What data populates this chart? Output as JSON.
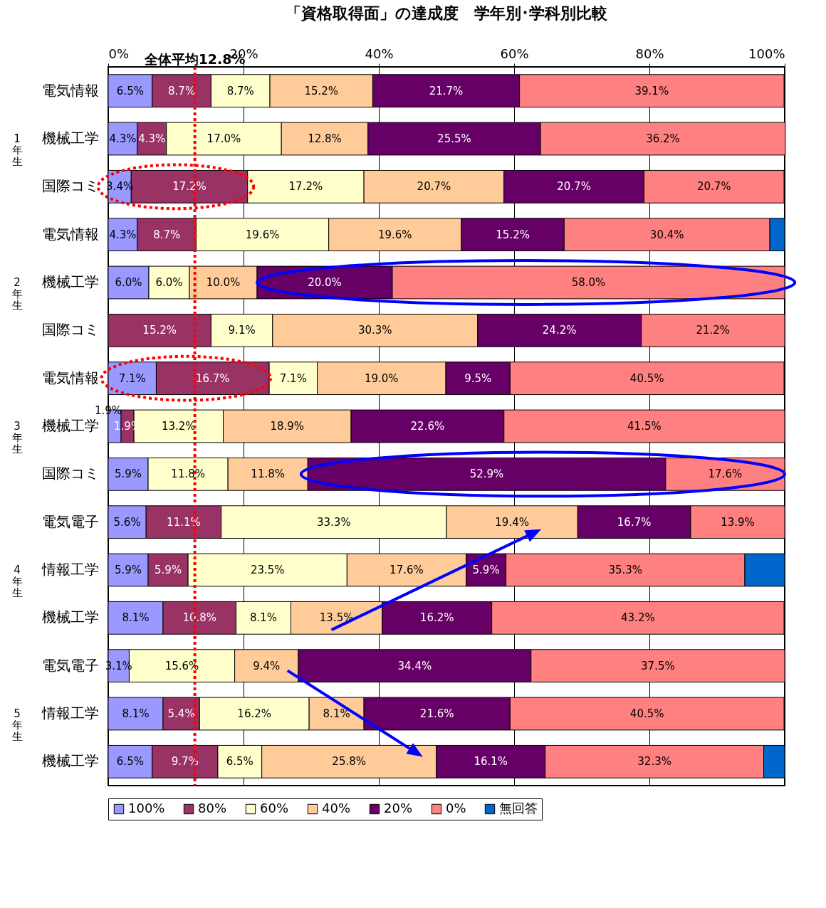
{
  "chart_data": {
    "type": "bar",
    "orientation": "horizontal",
    "stacked": true,
    "title": "「資格取得面」の達成度　学年別･学科別比較",
    "categories": [
      "電気情報",
      "機械工学",
      "国際コミ",
      "電気情報",
      "機械工学",
      "国際コミ",
      "電気情報",
      "機械工学",
      "国際コミ",
      "電気電子",
      "情報工学",
      "機械工学",
      "電気電子",
      "情報工学",
      "機械工学"
    ],
    "series": [
      {
        "name": "100%",
        "color": "#9999ff",
        "values": [
          6.5,
          4.3,
          3.4,
          4.3,
          6.0,
          0,
          7.1,
          1.9,
          5.9,
          5.6,
          5.9,
          8.1,
          3.1,
          8.1,
          6.5
        ],
        "value_labels": [
          "6.5%",
          "4.3%",
          "3.4%",
          "4.3%",
          "6.0%",
          null,
          "7.1%",
          "1.9%",
          "5.9%",
          "5.6%",
          "5.9%",
          "8.1%",
          "3.1%",
          "8.1%",
          "6.5%"
        ]
      },
      {
        "name": "80%",
        "color": "#993366",
        "values": [
          8.7,
          4.3,
          17.2,
          8.7,
          0,
          15.2,
          16.7,
          1.9,
          0,
          11.1,
          5.9,
          10.8,
          0,
          5.4,
          9.7
        ],
        "value_labels": [
          "8.7%",
          "4.3%",
          "17.2%",
          "8.7%",
          null,
          "15.2%",
          "16.7%",
          "1.9%",
          null,
          "11.1%",
          "5.9%",
          "10.8%",
          null,
          "5.4%",
          "9.7%"
        ]
      },
      {
        "name": "60%",
        "color": "#ffffcc",
        "values": [
          8.7,
          17.0,
          17.2,
          19.6,
          6.0,
          9.1,
          7.1,
          13.2,
          11.8,
          33.3,
          23.5,
          8.1,
          15.6,
          16.2,
          6.5
        ],
        "value_labels": [
          "8.7%",
          "17.0%",
          "17.2%",
          "19.6%",
          "6.0%",
          "9.1%",
          "7.1%",
          "13.2%",
          "11.8%",
          "33.3%",
          "23.5%",
          "8.1%",
          "15.6%",
          "16.2%",
          "6.5%"
        ]
      },
      {
        "name": "40%",
        "color": "#ffcc99",
        "values": [
          15.2,
          12.8,
          20.7,
          19.6,
          10.0,
          30.3,
          19.0,
          18.9,
          11.8,
          19.4,
          17.6,
          13.5,
          9.4,
          8.1,
          25.8
        ],
        "value_labels": [
          "15.2%",
          "12.8%",
          "20.7%",
          "19.6%",
          "10.0%",
          "30.3%",
          "19.0%",
          "18.9%",
          "11.8%",
          "19.4%",
          "17.6%",
          "13.5%",
          "9.4%",
          "8.1%",
          "25.8%"
        ]
      },
      {
        "name": "20%",
        "color": "#660066",
        "values": [
          21.7,
          25.5,
          20.7,
          15.2,
          20.0,
          24.2,
          9.5,
          22.6,
          52.9,
          16.7,
          5.9,
          16.2,
          34.4,
          21.6,
          16.1
        ],
        "value_labels": [
          "21.7%",
          "25.5%",
          "20.7%",
          "15.2%",
          "20.0%",
          "24.2%",
          "9.5%",
          "22.6%",
          "52.9%",
          "16.7%",
          "5.9%",
          "16.2%",
          "34.4%",
          "21.6%",
          "16.1%"
        ]
      },
      {
        "name": "0%",
        "color": "#ff8080",
        "values": [
          39.1,
          36.2,
          20.7,
          30.4,
          58.0,
          21.2,
          40.5,
          41.5,
          17.6,
          13.9,
          35.3,
          43.2,
          37.5,
          40.5,
          32.3
        ],
        "value_labels": [
          "39.1%",
          "36.2%",
          "20.7%",
          "30.4%",
          "58.0%",
          "21.2%",
          "40.5%",
          "41.5%",
          "17.6%",
          "13.9%",
          "35.3%",
          "43.2%",
          "37.5%",
          "40.5%",
          "32.3%"
        ]
      },
      {
        "name": "無回答",
        "color": "#0066cc",
        "values": [
          0,
          0,
          0,
          2.2,
          0,
          0,
          0,
          0,
          0,
          0,
          5.9,
          0,
          0,
          0,
          3.1
        ]
      }
    ],
    "xlim": [
      0,
      100
    ],
    "xticks": [
      {
        "value": 0,
        "label": "0%"
      },
      {
        "value": 20,
        "label": "20%"
      },
      {
        "value": 40,
        "label": "40%"
      },
      {
        "value": 60,
        "label": "60%"
      },
      {
        "value": 80,
        "label": "80%"
      },
      {
        "value": 100,
        "label": "100%"
      }
    ],
    "ref_lines": [
      {
        "axis": "x",
        "value": 12.8,
        "label": "全体平均12.8%",
        "color": "#ff0000",
        "line_style": "dotted"
      }
    ],
    "annotations": [
      "1年生",
      "2年生",
      "3年生",
      "4年生",
      "5年生"
    ],
    "grid": "x",
    "legend": "bottom"
  }
}
